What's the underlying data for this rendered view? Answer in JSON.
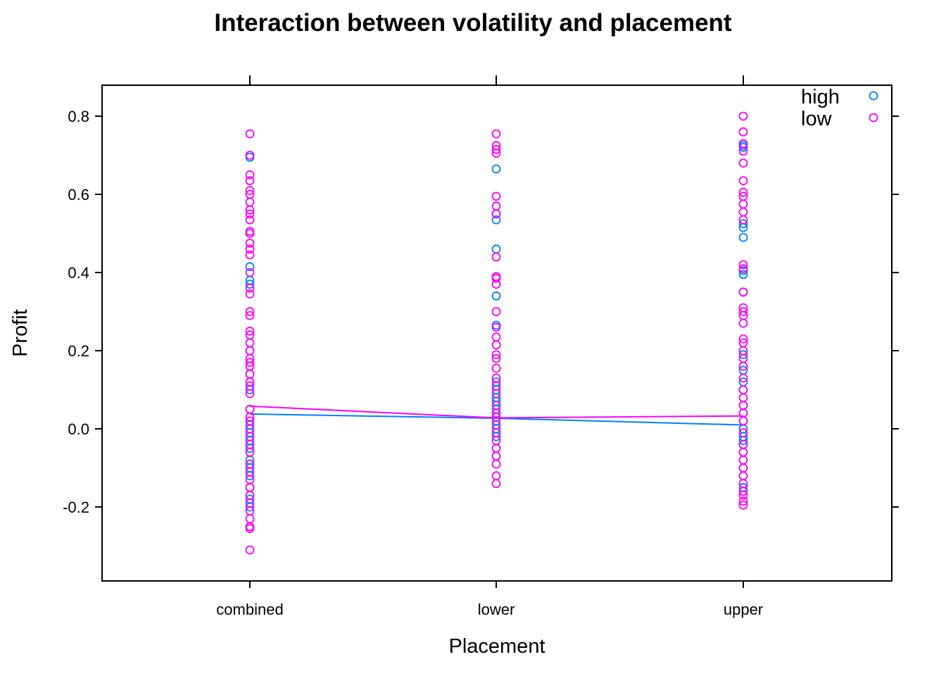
{
  "chart_data": {
    "type": "scatter",
    "title": "Interaction between volatility and placement",
    "xlabel": "Placement",
    "ylabel": "Profit",
    "categories": [
      "combined",
      "lower",
      "upper"
    ],
    "ylim": [
      -0.39,
      0.88
    ],
    "y_ticks": [
      -0.2,
      0.0,
      0.2,
      0.4,
      0.6,
      0.8
    ],
    "y_tick_labels": [
      "-0.2",
      "0.0",
      "0.2",
      "0.4",
      "0.6",
      "0.8"
    ],
    "grid": false,
    "legend_position": "top-right",
    "series": [
      {
        "name": "high",
        "color": "#0080ff",
        "points": {
          "combined": [
            0.695,
            0.415,
            0.38,
            0.37,
            0.2,
            0.16,
            0.14,
            0.12,
            0.1,
            0.05,
            0.03,
            0.01,
            -0.01,
            -0.03,
            -0.05,
            -0.08,
            -0.09,
            -0.1,
            -0.12,
            -0.15,
            -0.18,
            -0.2
          ],
          "lower": [
            0.665,
            0.55,
            0.535,
            0.46,
            0.34,
            0.265,
            0.12,
            0.1,
            0.08,
            0.07,
            0.05,
            0.04,
            0.02,
            0.0,
            -0.01,
            -0.02,
            -0.05,
            -0.07
          ],
          "upper": [
            0.725,
            0.72,
            0.525,
            0.515,
            0.49,
            0.405,
            0.395,
            0.35,
            0.19,
            0.15,
            0.12,
            0.1,
            0.06,
            0.04,
            0.02,
            0.0,
            -0.02,
            -0.03,
            -0.04,
            -0.06,
            -0.1,
            -0.12,
            -0.15
          ]
        },
        "means": [
          0.038,
          0.027,
          0.01
        ]
      },
      {
        "name": "low",
        "color": "#ff00ff",
        "points": {
          "combined": [
            0.755,
            0.7,
            0.65,
            0.635,
            0.61,
            0.6,
            0.58,
            0.56,
            0.55,
            0.535,
            0.505,
            0.5,
            0.475,
            0.46,
            0.445,
            0.4,
            0.36,
            0.345,
            0.3,
            0.29,
            0.25,
            0.24,
            0.22,
            0.2,
            0.18,
            0.17,
            0.16,
            0.14,
            0.12,
            0.11,
            0.09,
            0.05,
            0.03,
            0.02,
            0.0,
            -0.02,
            -0.04,
            -0.06,
            -0.09,
            -0.11,
            -0.13,
            -0.15,
            -0.17,
            -0.19,
            -0.21,
            -0.23,
            -0.25,
            -0.255,
            -0.31
          ],
          "lower": [
            0.755,
            0.725,
            0.715,
            0.705,
            0.595,
            0.57,
            0.55,
            0.44,
            0.39,
            0.385,
            0.37,
            0.3,
            0.26,
            0.235,
            0.215,
            0.19,
            0.18,
            0.155,
            0.13,
            0.11,
            0.09,
            0.06,
            0.04,
            0.03,
            0.01,
            -0.01,
            -0.03,
            -0.05,
            -0.07,
            -0.09,
            -0.12,
            -0.14
          ],
          "upper": [
            0.8,
            0.76,
            0.73,
            0.71,
            0.68,
            0.635,
            0.605,
            0.595,
            0.575,
            0.555,
            0.535,
            0.42,
            0.41,
            0.35,
            0.31,
            0.3,
            0.29,
            0.27,
            0.23,
            0.22,
            0.2,
            0.18,
            0.16,
            0.13,
            0.1,
            0.08,
            0.06,
            0.04,
            0.02,
            -0.01,
            -0.04,
            -0.06,
            -0.08,
            -0.1,
            -0.12,
            -0.14,
            -0.16,
            -0.17,
            -0.185,
            -0.195
          ]
        },
        "means": [
          0.058,
          0.028,
          0.033
        ]
      }
    ]
  }
}
